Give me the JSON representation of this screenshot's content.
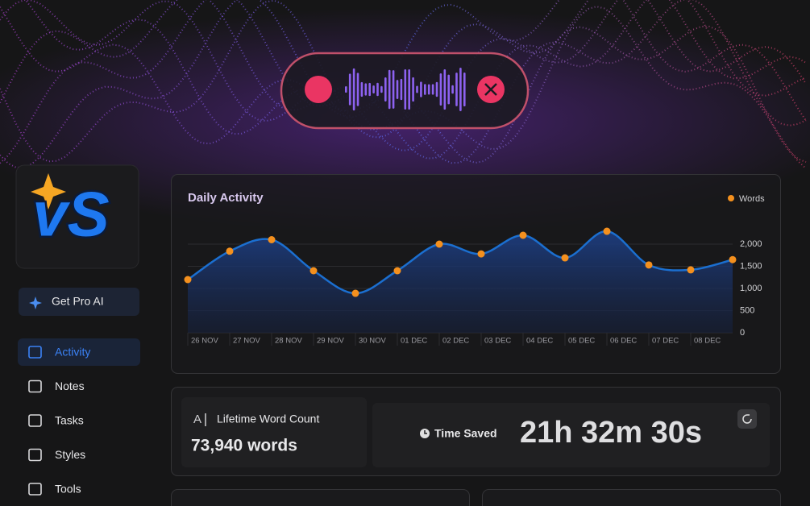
{
  "logo": "vS",
  "sidebar": {
    "pro_button": "Get Pro AI",
    "nav": [
      "Activity",
      "Notes",
      "Tasks",
      "Styles",
      "Tools"
    ]
  },
  "chart_data": {
    "type": "line",
    "title": "Daily Activity",
    "categories": [
      "26 NOV",
      "27 NOV",
      "28 NOV",
      "29 NOV",
      "30 NOV",
      "01 DEC",
      "02 DEC",
      "03 DEC",
      "04 DEC",
      "05 DEC",
      "06 DEC",
      "07 DEC",
      "08 DEC",
      null
    ],
    "series": [
      {
        "name": "Words",
        "color": "#f4901e",
        "line_color": "#1b6fd0",
        "values": [
          1200,
          1840,
          2100,
          1400,
          890,
          1400,
          2000,
          1780,
          2200,
          1690,
          2290,
          1530,
          1420,
          1650
        ]
      }
    ],
    "ylim": [
      0,
      2400
    ],
    "yticks": [
      0,
      500,
      {
        "value": 1000,
        "label": "1,000"
      },
      {
        "value": 1500,
        "label": "1,500"
      },
      {
        "value": 2000,
        "label": "2,000"
      }
    ],
    "grid": true,
    "legend": "top-right"
  },
  "stats": {
    "lifetime_label": "Lifetime Word Count",
    "lifetime_value": "73,940 words",
    "time_saved_label": "Time Saved",
    "time_saved_value": "21h 32m 30s"
  }
}
